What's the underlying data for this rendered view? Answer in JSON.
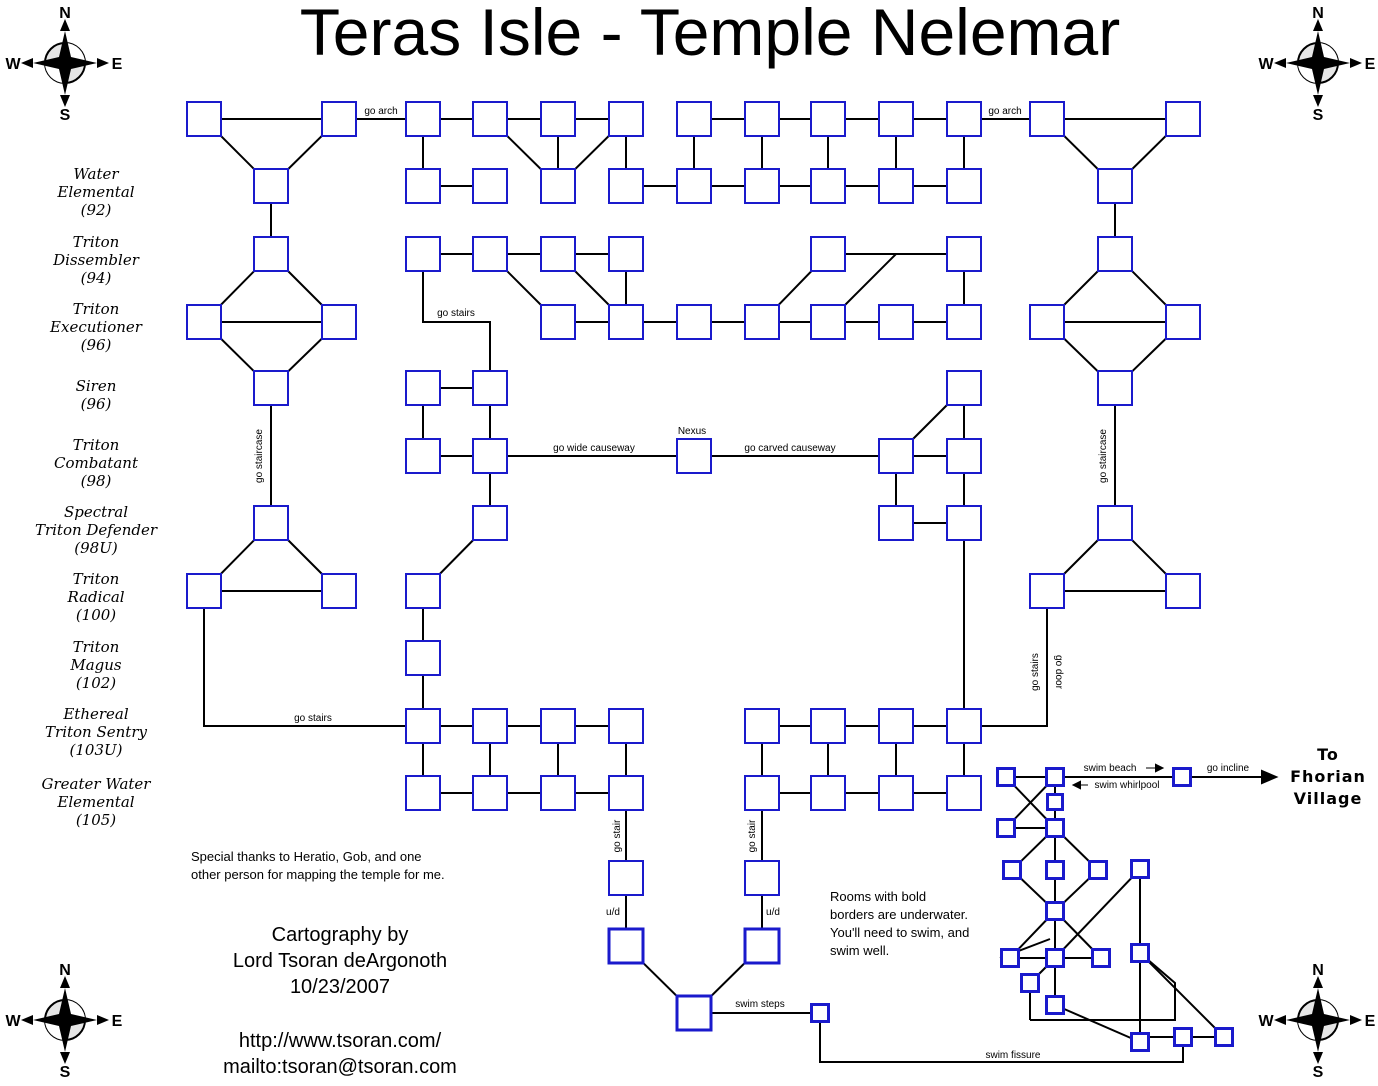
{
  "title": "Teras Isle - Temple Nelemar",
  "mobs": [
    {
      "name": [
        "Water",
        "Elemental"
      ],
      "level": "(92)"
    },
    {
      "name": [
        "Triton",
        "Dissembler"
      ],
      "level": "(94)"
    },
    {
      "name": [
        "Triton",
        "Executioner"
      ],
      "level": "(96)"
    },
    {
      "name": [
        "Siren"
      ],
      "level": "(96)"
    },
    {
      "name": [
        "Triton",
        "Combatant"
      ],
      "level": "(98)"
    },
    {
      "name": [
        "Spectral",
        "Triton Defender"
      ],
      "level": "(98U)"
    },
    {
      "name": [
        "Triton",
        "Radical"
      ],
      "level": "(100)"
    },
    {
      "name": [
        "Triton",
        "Magus"
      ],
      "level": "(102)"
    },
    {
      "name": [
        "Ethereal",
        "Triton Sentry"
      ],
      "level": "(103U)"
    },
    {
      "name": [
        "Greater Water",
        "Elemental"
      ],
      "level": "(105)"
    }
  ],
  "thanks": [
    "Special thanks to Heratio, Gob, and one",
    "other person for mapping the temple for me."
  ],
  "credits": [
    "Cartography by",
    "Lord Tsoran deArgonoth",
    "10/23/2007"
  ],
  "links": [
    "http://www.tsoran.com/",
    "mailto:tsoran@tsoran.com"
  ],
  "note": [
    "Rooms with bold",
    "borders are underwater.",
    "You'll need to swim, and",
    "swim well."
  ],
  "destination": [
    "To",
    "Fhorian",
    "Village"
  ],
  "compass": {
    "n": "N",
    "s": "S",
    "e": "E",
    "w": "W"
  },
  "labels": {
    "go_arch": "go arch",
    "go_stairs": "go stairs",
    "go_staircase": "go staircase",
    "nexus": "Nexus",
    "go_wide_causeway": "go wide causeway",
    "go_carved_causeway": "go carved causeway",
    "go_door": "go door",
    "go_stair": "go stair",
    "ud": "u/d",
    "swim_steps": "swim steps",
    "swim_fissure": "swim fissure",
    "swim_beach": "swim beach",
    "swim_whirlpool": "swim whirlpool",
    "go_incline": "go incline"
  },
  "colors": {
    "room_border": "#1a1acc",
    "line": "#000000",
    "background": "#ffffff"
  }
}
